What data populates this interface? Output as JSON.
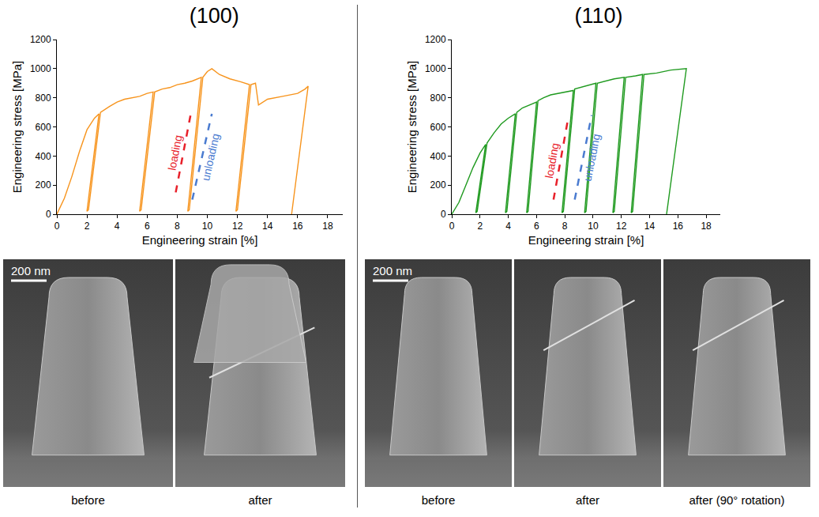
{
  "chart_data": [
    {
      "type": "line",
      "title": "(100)",
      "x_label": "Engineering strain [%]",
      "y_label": "Engineering stress [MPa]",
      "xlim": [
        0,
        19
      ],
      "ylim": [
        0,
        1200
      ],
      "xticks": [
        0,
        2,
        4,
        6,
        8,
        10,
        12,
        14,
        16,
        18
      ],
      "yticks": [
        0,
        200,
        400,
        600,
        800,
        1000,
        1200
      ],
      "grid": false,
      "series": [
        {
          "color": "#f7941d",
          "x": [
            0,
            0.5,
            1,
            1.5,
            2,
            2.5,
            2.8,
            2.0,
            2.1,
            2.9,
            3.5,
            4,
            4.5,
            5,
            5.5,
            6,
            6.4,
            5.5,
            5.6,
            6.5,
            7,
            7.5,
            8,
            8.5,
            9,
            9.6,
            8.7,
            8.8,
            9.7,
            10,
            10.3,
            10.8,
            11.5,
            12.2,
            12.8,
            11.9,
            12.0,
            12.9,
            13.2,
            13.4,
            14,
            15,
            16,
            16.5,
            16.7,
            15.6
          ],
          "values": [
            0,
            110,
            260,
            430,
            580,
            660,
            690,
            20,
            30,
            700,
            740,
            770,
            790,
            800,
            810,
            830,
            840,
            20,
            30,
            840,
            860,
            870,
            890,
            900,
            915,
            940,
            20,
            30,
            940,
            980,
            1000,
            960,
            930,
            910,
            890,
            20,
            30,
            890,
            900,
            750,
            790,
            810,
            830,
            860,
            880,
            0
          ]
        }
      ],
      "annotations": [
        {
          "text": "loading",
          "color": "#e8202a",
          "x": [
            7.9,
            8.9
          ],
          "y": [
            150,
            690
          ]
        },
        {
          "text": "unloading",
          "color": "#4a7bd0",
          "x": [
            9.0,
            10.3
          ],
          "y": [
            100,
            690
          ]
        }
      ]
    },
    {
      "type": "line",
      "title": "(110)",
      "x_label": "Engineering strain [%]",
      "y_label": "Engineering stress [MPa]",
      "xlim": [
        0,
        19
      ],
      "ylim": [
        0,
        1200
      ],
      "xticks": [
        0,
        2,
        4,
        6,
        8,
        10,
        12,
        14,
        16,
        18
      ],
      "yticks": [
        0,
        200,
        400,
        600,
        800,
        1000,
        1200
      ],
      "grid": false,
      "series": [
        {
          "color": "#1f9a1f",
          "x": [
            0,
            0.5,
            1,
            1.5,
            2,
            2.4,
            1.7,
            1.8,
            2.5,
            3,
            3.5,
            4,
            4.5,
            3.8,
            3.9,
            4.6,
            5,
            5.5,
            6,
            5.3,
            5.4,
            6.1,
            6.5,
            7,
            7.5,
            8,
            8.6,
            7.8,
            7.9,
            8.7,
            9.5,
            10.2,
            9.4,
            9.5,
            10.3,
            11,
            11.5,
            12.2,
            11.4,
            11.5,
            12.3,
            13,
            13.5,
            12.7,
            12.8,
            13.6,
            14.5,
            15.5,
            16.6,
            15.2
          ],
          "values": [
            0,
            80,
            200,
            320,
            420,
            480,
            10,
            20,
            490,
            560,
            620,
            660,
            690,
            10,
            20,
            700,
            730,
            750,
            770,
            10,
            20,
            780,
            800,
            820,
            830,
            840,
            850,
            10,
            20,
            860,
            880,
            900,
            10,
            20,
            900,
            920,
            930,
            940,
            10,
            20,
            940,
            950,
            960,
            10,
            20,
            960,
            970,
            990,
            1000,
            0
          ]
        }
      ],
      "annotations": [
        {
          "text": "loading",
          "color": "#e8202a",
          "x": [
            7.2,
            8.2
          ],
          "y": [
            100,
            640
          ]
        },
        {
          "text": "unloading",
          "color": "#4a7bd0",
          "x": [
            8.7,
            9.9
          ],
          "y": [
            100,
            680
          ]
        }
      ]
    }
  ],
  "micrographs": [
    {
      "scale_bar": "200 nm",
      "captions": [
        "before",
        "after"
      ]
    },
    {
      "scale_bar": "200 nm",
      "captions": [
        "before",
        "after",
        "after (90° rotation)"
      ]
    }
  ]
}
